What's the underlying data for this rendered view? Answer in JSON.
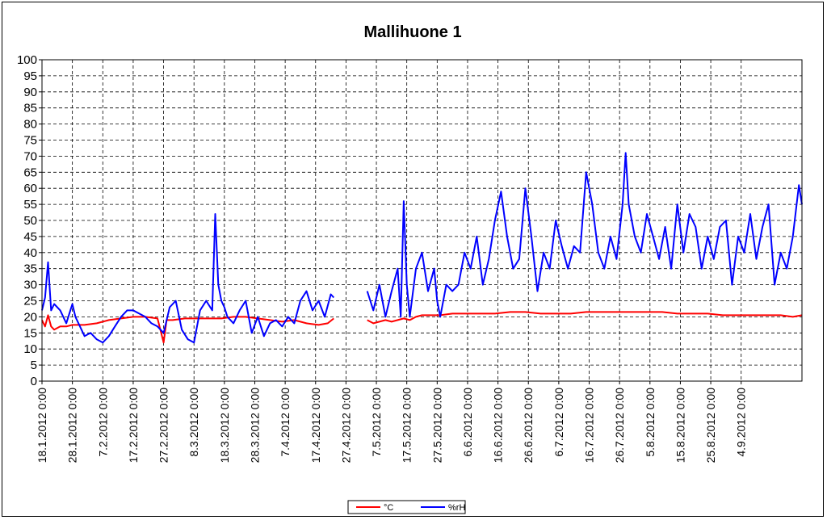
{
  "chart_data": {
    "type": "line",
    "title": "Mallihuone 1",
    "xlabel": "",
    "ylabel": "",
    "ylim": [
      0,
      100
    ],
    "yticks": [
      0,
      5,
      10,
      15,
      20,
      25,
      30,
      35,
      40,
      45,
      50,
      55,
      60,
      65,
      70,
      75,
      80,
      85,
      90,
      95,
      100
    ],
    "x_range": [
      "18.1.2012 0:00",
      "24.9.2012 0:00"
    ],
    "x_tick_labels": [
      "18.1.2012 0:00",
      "28.1.2012 0:00",
      "7.2.2012 0:00",
      "17.2.2012 0:00",
      "27.2.2012 0:00",
      "8.3.2012 0:00",
      "18.3.2012 0:00",
      "28.3.2012 0:00",
      "7.4.2012 0:00",
      "17.4.2012 0:00",
      "27.4.2012 0:00",
      "7.5.2012 0:00",
      "17.5.2012 0:00",
      "27.5.2012 0:00",
      "6.6.2012 0:00",
      "16.6.2012 0:00",
      "26.6.2012 0:00",
      "6.7.2012 0:00",
      "16.7.2012 0:00",
      "26.7.2012 0:00",
      "5.8.2012 0:00",
      "15.8.2012 0:00",
      "25.8.2012 0:00",
      "4.9.2012 0:00"
    ],
    "grid": true,
    "legend_position": "bottom-center",
    "series": [
      {
        "name": "°C",
        "color": "#ff0000",
        "segments": [
          {
            "x": [
              "18.1.2012",
              "19.1.2012",
              "20.1.2012",
              "21.1.2012",
              "22.1.2012",
              "24.1.2012",
              "26.1.2012",
              "28.1.2012",
              "1.2.2012",
              "5.2.2012",
              "9.2.2012",
              "13.2.2012",
              "17.2.2012",
              "21.2.2012",
              "25.2.2012",
              "27.2.2012",
              "28.2.2012",
              "1.3.2012",
              "5.3.2012",
              "9.3.2012",
              "13.3.2012",
              "17.3.2012",
              "21.3.2012",
              "25.3.2012",
              "29.3.2012",
              "2.4.2012",
              "6.4.2012",
              "10.4.2012",
              "14.4.2012",
              "18.4.2012",
              "21.4.2012",
              "23.4.2012"
            ],
            "y": [
              19,
              17,
              20.5,
              17,
              16,
              17,
              17,
              17.5,
              17.5,
              18,
              19,
              19.5,
              20,
              20,
              19.5,
              12,
              19,
              19,
              19.5,
              19.5,
              19.5,
              19.5,
              20,
              20,
              19.5,
              19,
              18.5,
              19,
              18,
              17.5,
              18,
              19.5
            ]
          },
          {
            "x": [
              "4.5.2012",
              "6.5.2012",
              "8.5.2012",
              "10.5.2012",
              "12.5.2012",
              "14.5.2012",
              "16.5.2012",
              "18.5.2012",
              "20.5.2012",
              "22.5.2012",
              "25.5.2012",
              "28.5.2012",
              "1.6.2012",
              "5.6.2012",
              "10.6.2012",
              "15.6.2012",
              "20.6.2012",
              "25.6.2012",
              "30.6.2012",
              "5.7.2012",
              "10.7.2012",
              "15.7.2012",
              "20.7.2012",
              "25.7.2012",
              "30.7.2012",
              "4.8.2012",
              "9.8.2012",
              "14.8.2012",
              "19.8.2012",
              "24.8.2012",
              "29.8.2012",
              "3.9.2012",
              "8.9.2012",
              "13.9.2012",
              "17.9.2012",
              "21.9.2012",
              "24.9.2012"
            ],
            "y": [
              19,
              18,
              18.5,
              19,
              18.5,
              19,
              19.5,
              19,
              20,
              20.5,
              20.5,
              20.5,
              21,
              21,
              21,
              21,
              21.5,
              21.5,
              21,
              21,
              21,
              21.5,
              21.5,
              21.5,
              21.5,
              21.5,
              21.5,
              21,
              21,
              21,
              20.5,
              20.5,
              20.5,
              20.5,
              20.5,
              20,
              20.5
            ]
          }
        ]
      },
      {
        "name": "%rH",
        "color": "#0000ff",
        "segments": [
          {
            "x": [
              "18.1.2012",
              "19.1.2012",
              "20.1.2012",
              "21.1.2012",
              "22.1.2012",
              "24.1.2012",
              "26.1.2012",
              "28.1.2012",
              "29.1.2012",
              "30.1.2012",
              "1.2.2012",
              "3.2.2012",
              "5.2.2012",
              "7.2.2012",
              "9.2.2012",
              "11.2.2012",
              "13.2.2012",
              "15.2.2012",
              "17.2.2012",
              "19.2.2012",
              "21.2.2012",
              "23.2.2012",
              "25.2.2012",
              "27.2.2012",
              "29.2.2012",
              "2.3.2012",
              "4.3.2012",
              "6.3.2012",
              "8.3.2012",
              "10.3.2012",
              "12.3.2012",
              "14.3.2012",
              "15.3.2012",
              "16.3.2012",
              "17.3.2012",
              "18.3.2012",
              "19.3.2012",
              "21.3.2012",
              "23.3.2012",
              "25.3.2012",
              "27.3.2012",
              "29.3.2012",
              "31.3.2012",
              "2.4.2012",
              "4.4.2012",
              "6.4.2012",
              "8.4.2012",
              "10.4.2012",
              "12.4.2012",
              "14.4.2012",
              "16.4.2012",
              "18.4.2012",
              "20.4.2012",
              "22.4.2012",
              "23.4.2012"
            ],
            "y": [
              22,
              26,
              37,
              22,
              24,
              22,
              18,
              24,
              20,
              18,
              14,
              15,
              13,
              12,
              14,
              17,
              20,
              22,
              22,
              21,
              20,
              18,
              17,
              15,
              23,
              25,
              16,
              13,
              12,
              22,
              25,
              22,
              52,
              30,
              25,
              23,
              20,
              18,
              22,
              25,
              15,
              20,
              14,
              18,
              19,
              17,
              20,
              18,
              25,
              28,
              22,
              25,
              20,
              27,
              26
            ]
          },
          {
            "x": [
              "4.5.2012",
              "5.5.2012",
              "6.5.2012",
              "8.5.2012",
              "10.5.2012",
              "12.5.2012",
              "14.5.2012",
              "15.5.2012",
              "16.5.2012",
              "17.5.2012",
              "18.5.2012",
              "20.5.2012",
              "22.5.2012",
              "24.5.2012",
              "26.5.2012",
              "27.5.2012",
              "28.5.2012",
              "30.5.2012",
              "1.6.2012",
              "3.6.2012",
              "5.6.2012",
              "7.6.2012",
              "9.6.2012",
              "11.6.2012",
              "13.6.2012",
              "15.6.2012",
              "17.6.2012",
              "19.6.2012",
              "21.6.2012",
              "23.6.2012",
              "25.6.2012",
              "27.6.2012",
              "29.6.2012",
              "1.7.2012",
              "3.7.2012",
              "5.7.2012",
              "7.7.2012",
              "9.7.2012",
              "11.7.2012",
              "13.7.2012",
              "15.7.2012",
              "17.7.2012",
              "19.7.2012",
              "21.7.2012",
              "23.7.2012",
              "25.7.2012",
              "27.7.2012",
              "28.7.2012",
              "29.7.2012",
              "31.7.2012",
              "2.8.2012",
              "4.8.2012",
              "6.8.2012",
              "8.8.2012",
              "10.8.2012",
              "12.8.2012",
              "14.8.2012",
              "16.8.2012",
              "18.8.2012",
              "20.8.2012",
              "22.8.2012",
              "24.8.2012",
              "26.8.2012",
              "28.8.2012",
              "30.8.2012",
              "1.9.2012",
              "3.9.2012",
              "5.9.2012",
              "7.9.2012",
              "9.9.2012",
              "11.9.2012",
              "13.9.2012",
              "15.9.2012",
              "17.9.2012",
              "19.9.2012",
              "21.9.2012",
              "23.9.2012",
              "24.9.2012"
            ],
            "y": [
              28,
              25,
              22,
              30,
              20,
              28,
              35,
              20,
              56,
              30,
              20,
              35,
              40,
              28,
              35,
              25,
              20,
              30,
              28,
              30,
              40,
              35,
              45,
              30,
              38,
              50,
              59,
              45,
              35,
              38,
              60,
              45,
              28,
              40,
              35,
              50,
              42,
              35,
              42,
              40,
              65,
              55,
              40,
              35,
              45,
              38,
              55,
              71,
              55,
              45,
              40,
              52,
              45,
              38,
              48,
              35,
              55,
              40,
              52,
              48,
              35,
              45,
              38,
              48,
              50,
              30,
              45,
              40,
              52,
              38,
              48,
              55,
              30,
              40,
              35,
              45,
              61,
              55
            ]
          }
        ]
      }
    ]
  }
}
